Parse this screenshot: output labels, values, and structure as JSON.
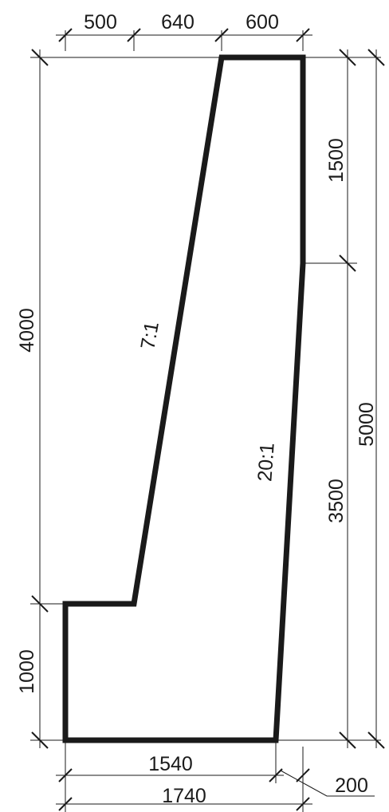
{
  "dimensions": {
    "top_500": "500",
    "top_640": "640",
    "top_600": "600",
    "left_4000": "4000",
    "left_1000": "1000",
    "right_1500": "1500",
    "right_3500": "3500",
    "right_5000": "5000",
    "bottom_1540": "1540",
    "bottom_1740": "1740",
    "toe_200": "200"
  },
  "slopes": {
    "front": "7:1",
    "back": "20:1"
  }
}
